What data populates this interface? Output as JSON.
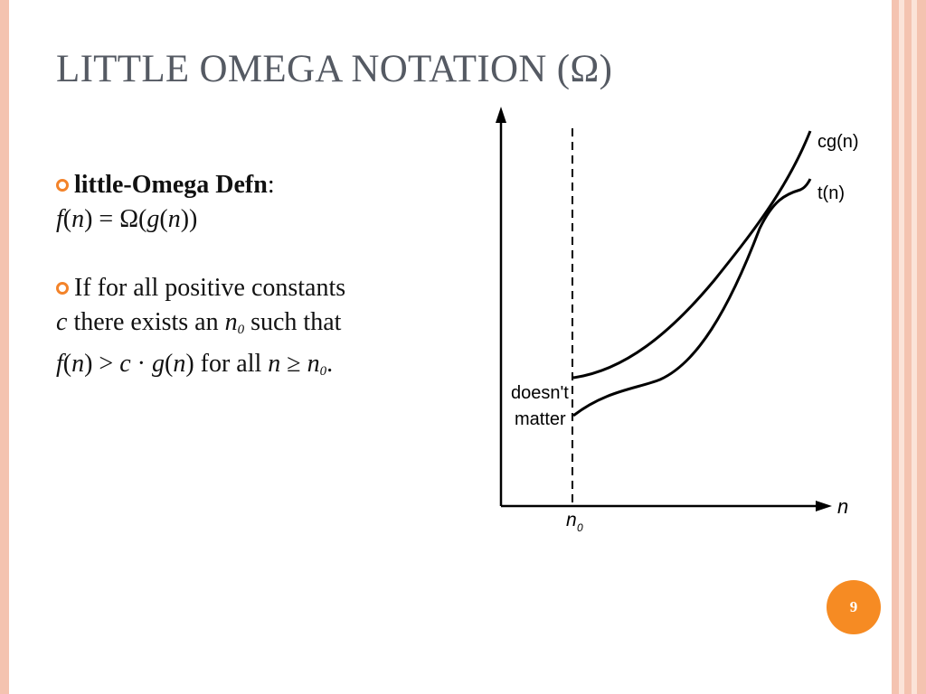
{
  "slide": {
    "title": "LITTLE OMEGA NOTATION (Ω)",
    "page_number": "9"
  },
  "bullets": {
    "defn_term": "little-Omega Defn",
    "defn_colon": ":",
    "defn_f": "f",
    "defn_n1": "n",
    "defn_mid": ") = Ω(",
    "defn_g": "g",
    "defn_n2": "n",
    "defn_end": "))",
    "cond_line1": " If for all positive constants",
    "cond_c": "c",
    "cond_exists": " there exists an ",
    "cond_n": "n",
    "cond_n_sub": "0",
    "cond_such_that": " such that",
    "cond_f": "f",
    "cond_n1": "n",
    "cond_gt": ") > ",
    "cond_c2": "c",
    "cond_dot": " · ",
    "cond_g": "g",
    "cond_n2": "n",
    "cond_forall": ")  for all ",
    "cond_n3": "n",
    "cond_geq": " ≥ ",
    "cond_n4": "n",
    "cond_n4_sub": "0",
    "cond_period": "."
  },
  "graph": {
    "curve_labels": [
      "cg(n)",
      "t(n)"
    ],
    "region_label_line1": "doesn't",
    "region_label_line2": "matter",
    "x_axis_label": "n",
    "threshold_label": "n",
    "threshold_sub": "0"
  },
  "colors": {
    "bullet": "#f3832a",
    "page_badge": "#f68b23",
    "title": "#555a63",
    "frame": "#f4c3b0"
  }
}
